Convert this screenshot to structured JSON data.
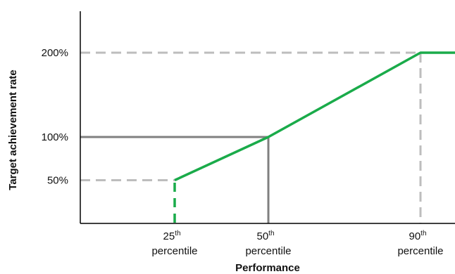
{
  "chart_data": {
    "type": "line",
    "title": "",
    "xlabel": "Performance",
    "ylabel": "Target achievement rate",
    "y_ticks": [
      {
        "value": 50,
        "label": "50%"
      },
      {
        "value": 100,
        "label": "100%"
      },
      {
        "value": 200,
        "label": "200%"
      }
    ],
    "x_ticks": [
      {
        "value": 25,
        "ordinal": "25",
        "suffix": "th",
        "word": "percentile"
      },
      {
        "value": 50,
        "ordinal": "50",
        "suffix": "th",
        "word": "percentile"
      },
      {
        "value": 90,
        "ordinal": "90",
        "suffix": "th",
        "word": "percentile"
      }
    ],
    "series": [
      {
        "color": "#1aab4a",
        "points": [
          [
            25,
            0
          ],
          [
            25,
            50
          ],
          [
            50,
            100
          ],
          [
            90,
            200
          ],
          [
            100,
            200
          ]
        ],
        "vertical_segment_dashed": true
      }
    ],
    "reference_lines": [
      {
        "style": "dashed",
        "color": "#bdbdbd",
        "from": [
          0,
          50
        ],
        "to": [
          25,
          50
        ]
      },
      {
        "style": "dashed",
        "color": "#bdbdbd",
        "from": [
          0,
          200
        ],
        "to": [
          90,
          200
        ]
      },
      {
        "style": "dashed",
        "color": "#bdbdbd",
        "from": [
          90,
          200
        ],
        "to": [
          90,
          0
        ]
      },
      {
        "style": "solid",
        "color": "#808080",
        "from": [
          0,
          100
        ],
        "to": [
          50,
          100
        ]
      },
      {
        "style": "solid",
        "color": "#808080",
        "from": [
          50,
          100
        ],
        "to": [
          50,
          0
        ]
      }
    ],
    "xlim": [
      0,
      100
    ],
    "ylim": [
      0,
      255
    ],
    "grid": false,
    "legend": "none"
  }
}
